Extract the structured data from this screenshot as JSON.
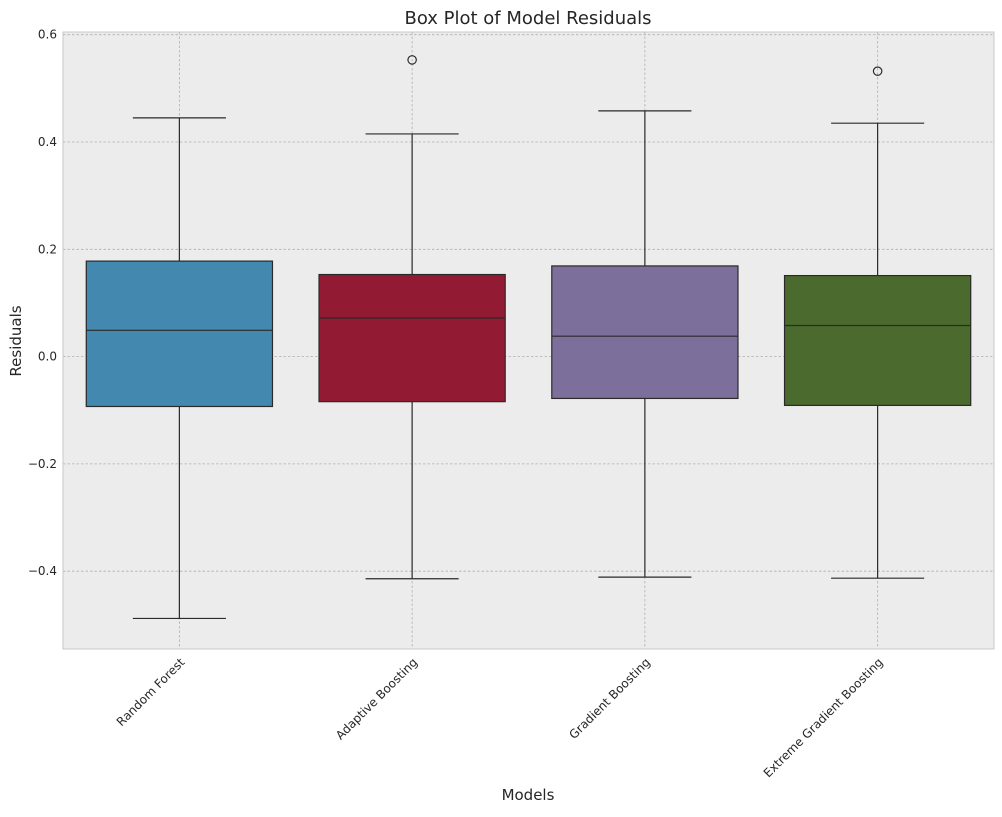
{
  "chart_data": {
    "type": "box",
    "title": "Box Plot of Model Residuals",
    "xlabel": "Models",
    "ylabel": "Residuals",
    "ylim": [
      -0.545,
      0.605
    ],
    "yticks": [
      -0.4,
      -0.2,
      0.0,
      0.2,
      0.4,
      0.6
    ],
    "ytick_labels": [
      "−0.4",
      "−0.2",
      "0.0",
      "0.2",
      "0.4",
      "0.6"
    ],
    "grid": true,
    "background_color": "#ececec",
    "categories": [
      "Random Forest",
      "Adaptive Boosting",
      "Gradient Boosting",
      "Extreme Gradient Boosting"
    ],
    "series": [
      {
        "category": "Random Forest",
        "color": "#4388ae",
        "whisker_low": -0.488,
        "q1": -0.093,
        "median": 0.049,
        "q3": 0.178,
        "whisker_high": 0.445,
        "outliers": []
      },
      {
        "category": "Adaptive Boosting",
        "color": "#921a32",
        "whisker_low": -0.414,
        "q1": -0.084,
        "median": 0.072,
        "q3": 0.153,
        "whisker_high": 0.415,
        "outliers": [
          0.553
        ]
      },
      {
        "category": "Gradient Boosting",
        "color": "#7d6f9c",
        "whisker_low": -0.411,
        "q1": -0.078,
        "median": 0.038,
        "q3": 0.169,
        "whisker_high": 0.458,
        "outliers": []
      },
      {
        "category": "Extreme Gradient Boosting",
        "color": "#4a6b2d",
        "whisker_low": -0.413,
        "q1": -0.091,
        "median": 0.058,
        "q3": 0.151,
        "whisker_high": 0.435,
        "outliers": [
          0.532
        ]
      }
    ]
  }
}
